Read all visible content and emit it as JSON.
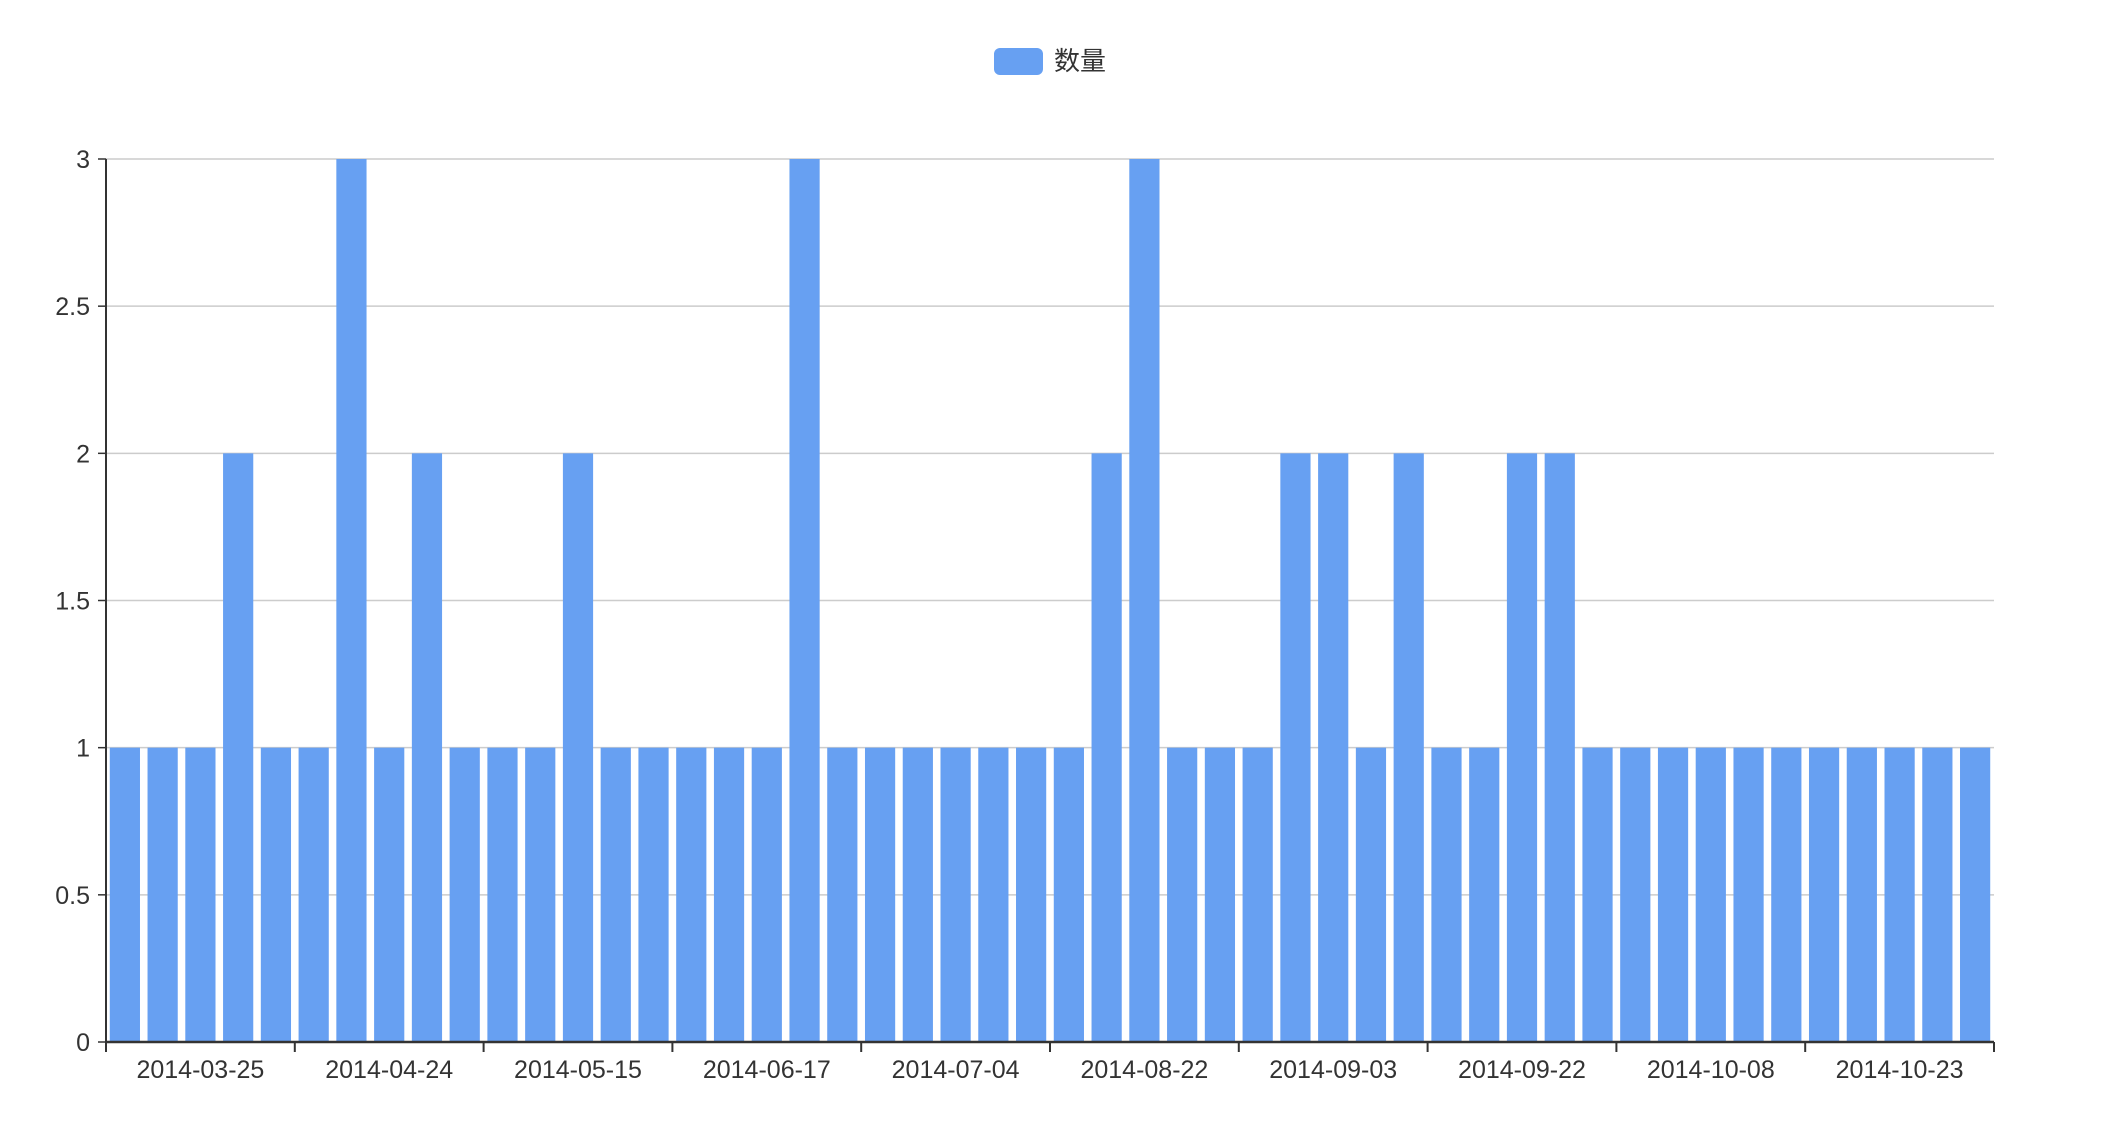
{
  "chart_data": {
    "type": "bar",
    "title": "",
    "xlabel": "",
    "ylabel": "",
    "legend_position": "top-center",
    "grid": true,
    "ylim": [
      0,
      3
    ],
    "y_ticks": [
      "0",
      "0.5",
      "1",
      "1.5",
      "2",
      "2.5",
      "3"
    ],
    "x_tick_labels": [
      "2014-03-25",
      "2014-04-24",
      "2014-05-15",
      "2014-06-17",
      "2014-07-04",
      "2014-08-22",
      "2014-09-03",
      "2014-09-22",
      "2014-10-08",
      "2014-10-23"
    ],
    "colors": {
      "bar": "#67a0f2",
      "grid": "#cccccc",
      "axis": "#333333"
    },
    "series": [
      {
        "name": "数量",
        "values": [
          1,
          1,
          1,
          2,
          1,
          1,
          3,
          1,
          2,
          1,
          1,
          1,
          2,
          1,
          1,
          1,
          1,
          1,
          3,
          1,
          1,
          1,
          1,
          1,
          1,
          1,
          2,
          3,
          1,
          1,
          1,
          2,
          2,
          1,
          2,
          1,
          1,
          2,
          2,
          1,
          1,
          1,
          1,
          1,
          1,
          1,
          1,
          1,
          1,
          1
        ]
      }
    ]
  }
}
